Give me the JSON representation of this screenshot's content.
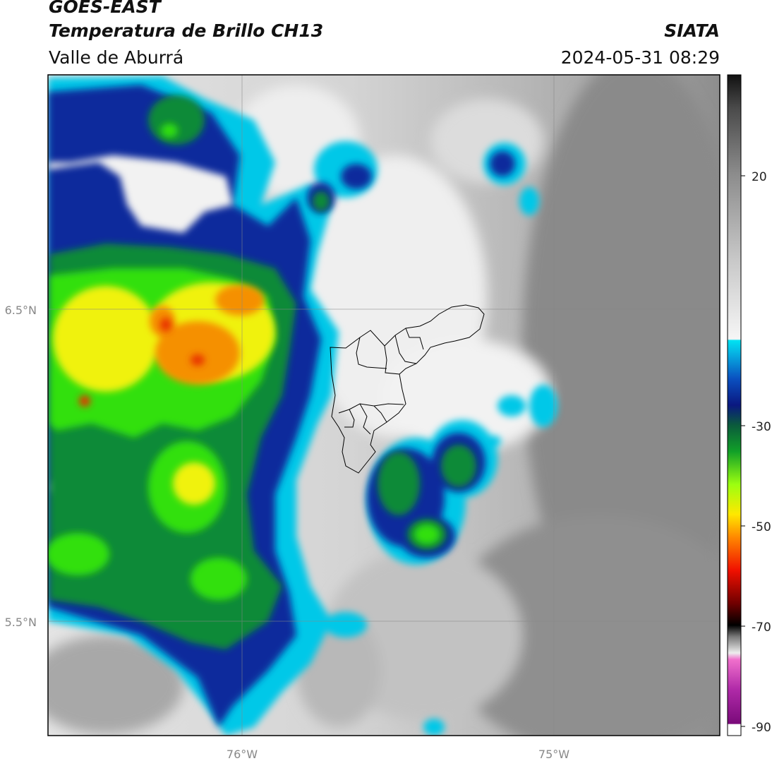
{
  "header": {
    "satellite": "GOES-EAST",
    "product": "Temperatura de Brillo CH13",
    "region": "Valle de Aburrá",
    "org": "SIATA",
    "datetime": "2024-05-31 08:29"
  },
  "map": {
    "lat_labels": [
      "6.5°N",
      "5.5°N"
    ],
    "lon_labels": [
      "76°W",
      "75°W"
    ]
  },
  "colorbar": {
    "ticks": [
      "20",
      "-30",
      "-50",
      "-70",
      "-90"
    ],
    "range": [
      -92,
      33
    ],
    "colors": {
      "gray_light": "#f2f2f2",
      "gray_dark": "#8a8a8a",
      "cyan": "#00d5ee",
      "blue": "#0a1d8c",
      "green": "#0a8a2a",
      "lime": "#33ff11",
      "yellow": "#f5f50a",
      "orange": "#f58a00",
      "red": "#e00000",
      "black": "#000000",
      "magenta": "#e040c0",
      "purple": "#8a0e8a"
    }
  }
}
